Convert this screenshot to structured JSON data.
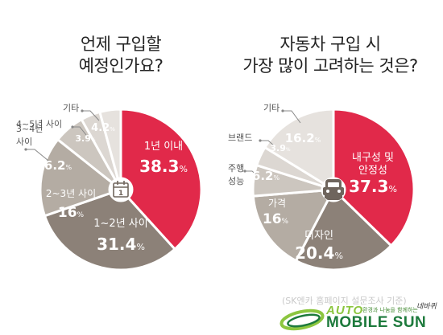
{
  "chart_data": [
    {
      "type": "pie",
      "title_lines": [
        "언제 구입할",
        "예정인가요?"
      ],
      "slices": [
        {
          "label": "1년 이내",
          "value": 38.3,
          "value_text": "38.3",
          "unit": "%",
          "color": "#e1294a"
        },
        {
          "label": "1~2년 사이",
          "value": 31.4,
          "value_text": "31.4",
          "unit": "%",
          "color": "#8c8178"
        },
        {
          "label": "2~3년 사이",
          "value": 16,
          "value_text": "16",
          "unit": "%",
          "color": "#b4aca3"
        },
        {
          "label": "3~4년 사이",
          "value": 6.2,
          "value_text": "6.2",
          "unit": "%",
          "color": "#ccc6bf"
        },
        {
          "label": "4~5년 사이",
          "value": 3.9,
          "value_text": "3.9",
          "unit": "%",
          "color": "#dcd7d2"
        },
        {
          "label": "기타",
          "value": 4.2,
          "value_text": "4.2",
          "unit": "%",
          "color": "#e6e2de"
        }
      ],
      "center_icon": "calendar-icon"
    },
    {
      "type": "pie",
      "title_lines": [
        "자동차 구입 시",
        "가장 많이 고려하는 것은?"
      ],
      "slices": [
        {
          "label": "내구성 및 안정성",
          "value": 37.3,
          "value_text": "37.3",
          "unit": "%",
          "color": "#e1294a"
        },
        {
          "label": "디자인",
          "value": 20.4,
          "value_text": "20.4",
          "unit": "%",
          "color": "#8c8178"
        },
        {
          "label": "가격",
          "value": 16,
          "value_text": "16",
          "unit": "%",
          "color": "#b4aca3"
        },
        {
          "label": "주행 성능",
          "value": 6.2,
          "value_text": "6.2",
          "unit": "%",
          "color": "#ccc6bf"
        },
        {
          "label": "브랜드",
          "value": 3.9,
          "value_text": "3.9",
          "unit": "%",
          "color": "#dcd7d2"
        },
        {
          "label": "기타",
          "value": 16.2,
          "value_text": "16.2",
          "unit": "%",
          "color": "#e6e2de"
        }
      ],
      "center_icon": "car-icon"
    }
  ],
  "source": "(SK엔카 홈페이지 설문조사 기준)",
  "logo": {
    "auto": "AUTO",
    "main": "MOBILE SUN",
    "tagline": "환경과 나눔을 함께하는",
    "signature": "네바퀴"
  }
}
